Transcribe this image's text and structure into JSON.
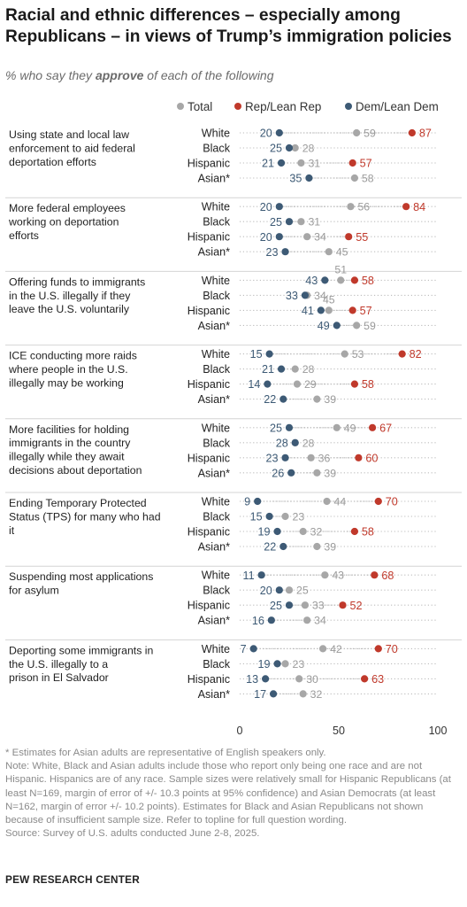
{
  "title": "Racial and ethnic differences – especially among Republicans – in views of Trump’s immigration policies",
  "subtitle": {
    "before": "% who say they ",
    "emphasis": "approve",
    "after": " of each of the following"
  },
  "legend": {
    "total": "Total",
    "rep": "Rep/Lean Rep",
    "dem": "Dem/Lean Dem"
  },
  "colors": {
    "total": "#a7a7a7",
    "rep": "#c0392b",
    "dem": "#3d5a75",
    "label_total": "#9a9a9a",
    "label_rep": "#c0392b",
    "label_dem": "#3d5a75",
    "separator": "#d4d4d4",
    "dotted": "#bdbdbd"
  },
  "chart_data": {
    "type": "scatter",
    "subtype": "dot-plot",
    "groups": [
      "White",
      "Black",
      "Hispanic",
      "Asian*"
    ],
    "xlim": [
      0,
      100
    ],
    "xticks": [
      "0",
      "50",
      "100"
    ],
    "series_names": [
      "Total",
      "Rep/Lean Rep",
      "Dem/Lean Dem"
    ],
    "items": [
      {
        "label": "Using state and local law enforcement to aid federal deportation efforts",
        "rows": [
          {
            "group": "White",
            "total": 59,
            "rep": 87,
            "dem": 20
          },
          {
            "group": "Black",
            "total": 28,
            "rep": null,
            "dem": 25
          },
          {
            "group": "Hispanic",
            "total": 31,
            "rep": 57,
            "dem": 21
          },
          {
            "group": "Asian*",
            "total": 58,
            "rep": null,
            "dem": 35
          }
        ]
      },
      {
        "label": "More federal employees working on deportation efforts",
        "rows": [
          {
            "group": "White",
            "total": 56,
            "rep": 84,
            "dem": 20
          },
          {
            "group": "Black",
            "total": 31,
            "rep": null,
            "dem": 25
          },
          {
            "group": "Hispanic",
            "total": 34,
            "rep": 55,
            "dem": 20
          },
          {
            "group": "Asian*",
            "total": 45,
            "rep": null,
            "dem": 23
          }
        ]
      },
      {
        "label": "Offering funds to immigrants in the U.S. illegally if they leave the U.S. voluntarily",
        "rows": [
          {
            "group": "White",
            "total": 51,
            "rep": 58,
            "dem": 43
          },
          {
            "group": "Black",
            "total": 34,
            "rep": null,
            "dem": 33
          },
          {
            "group": "Hispanic",
            "total": 45,
            "rep": 57,
            "dem": 41
          },
          {
            "group": "Asian*",
            "total": 59,
            "rep": null,
            "dem": 49
          }
        ]
      },
      {
        "label": "ICE conducting more raids where people in the U.S. illegally may be working",
        "rows": [
          {
            "group": "White",
            "total": 53,
            "rep": 82,
            "dem": 15
          },
          {
            "group": "Black",
            "total": 28,
            "rep": null,
            "dem": 21
          },
          {
            "group": "Hispanic",
            "total": 29,
            "rep": 58,
            "dem": 14
          },
          {
            "group": "Asian*",
            "total": 39,
            "rep": null,
            "dem": 22
          }
        ]
      },
      {
        "label": "More facilities for holding immigrants in the country illegally while they await decisions about deportation",
        "rows": [
          {
            "group": "White",
            "total": 49,
            "rep": 67,
            "dem": 25
          },
          {
            "group": "Black",
            "total": 28,
            "rep": null,
            "dem": 28
          },
          {
            "group": "Hispanic",
            "total": 36,
            "rep": 60,
            "dem": 23
          },
          {
            "group": "Asian*",
            "total": 39,
            "rep": null,
            "dem": 26
          }
        ]
      },
      {
        "label": "Ending Temporary Protected Status (TPS) for many who had it",
        "rows": [
          {
            "group": "White",
            "total": 44,
            "rep": 70,
            "dem": 9
          },
          {
            "group": "Black",
            "total": 23,
            "rep": null,
            "dem": 15
          },
          {
            "group": "Hispanic",
            "total": 32,
            "rep": 58,
            "dem": 19
          },
          {
            "group": "Asian*",
            "total": 39,
            "rep": null,
            "dem": 22
          }
        ]
      },
      {
        "label": "Suspending most applications for asylum",
        "rows": [
          {
            "group": "White",
            "total": 43,
            "rep": 68,
            "dem": 11
          },
          {
            "group": "Black",
            "total": 25,
            "rep": null,
            "dem": 20
          },
          {
            "group": "Hispanic",
            "total": 33,
            "rep": 52,
            "dem": 25
          },
          {
            "group": "Asian*",
            "total": 34,
            "rep": null,
            "dem": 16
          }
        ]
      },
      {
        "label": "Deporting some immigrants in the U.S. illegally to a prison in El Salvador",
        "rows": [
          {
            "group": "White",
            "total": 42,
            "rep": 70,
            "dem": 7
          },
          {
            "group": "Black",
            "total": 23,
            "rep": null,
            "dem": 19
          },
          {
            "group": "Hispanic",
            "total": 30,
            "rep": 63,
            "dem": 13
          },
          {
            "group": "Asian*",
            "total": 32,
            "rep": null,
            "dem": 17
          }
        ]
      }
    ]
  },
  "footnotes": [
    "* Estimates for Asian adults are representative of English speakers only.",
    "Note: White, Black and Asian adults include those who report only being one race and are not Hispanic. Hispanics are of any race. Sample sizes were relatively small for Hispanic Republicans (at least N=169, margin of error of +/- 10.3 points at 95% confidence) and Asian Democrats (at least N=162, margin of error +/- 10.2 points). Estimates for Black and Asian Republicans not shown because of insufficient sample size. Refer to topline for full question wording.",
    "Source: Survey of U.S. adults conducted June 2-8, 2025."
  ],
  "brand": "PEW RESEARCH CENTER"
}
